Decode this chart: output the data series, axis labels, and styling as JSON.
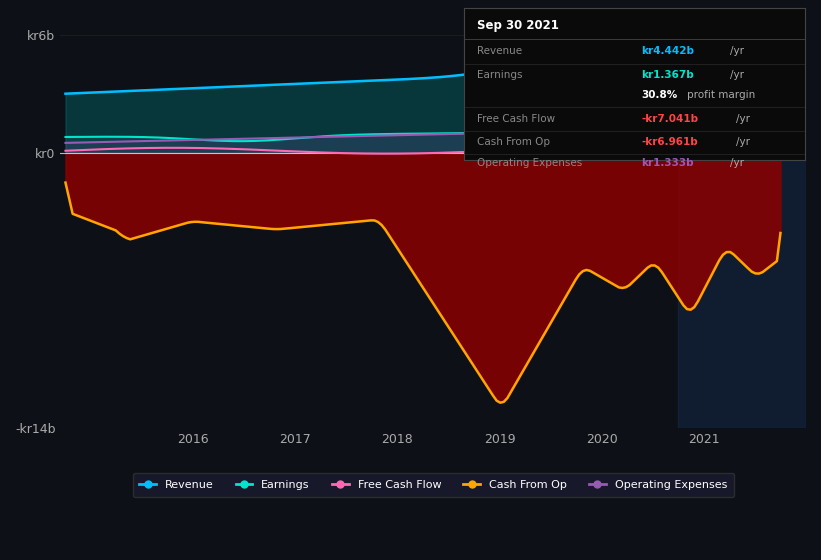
{
  "bg_color": "#0d1117",
  "plot_bg_color": "#0d1117",
  "legend_items": [
    "Revenue",
    "Earnings",
    "Free Cash Flow",
    "Cash From Op",
    "Operating Expenses"
  ],
  "legend_colors": [
    "#00bfff",
    "#00e5cc",
    "#ff69b4",
    "#ffa500",
    "#9b59b6"
  ],
  "ylim": [
    -14,
    7
  ],
  "xlim_start": 2014.7,
  "xlim_end": 2022.0,
  "highlight_x_start": 2020.75,
  "highlight_x_end": 2022.0
}
